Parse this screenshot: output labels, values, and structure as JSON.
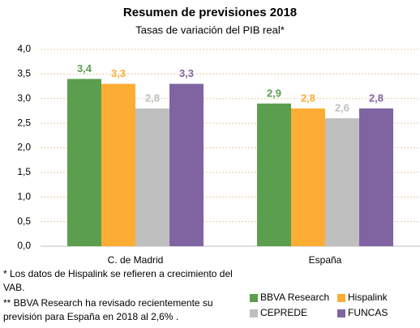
{
  "chart_data": {
    "type": "bar",
    "title": "Resumen de previsiones 2018",
    "subtitle": "Tasas de variación del PIB real*",
    "categories": [
      "C. de Madrid",
      "España"
    ],
    "series": [
      {
        "name": "BBVA Research",
        "color": "#5b9e4d",
        "values": [
          3.4,
          2.9
        ],
        "value_labels": [
          "3,4",
          "2,9"
        ]
      },
      {
        "name": "Hispalink",
        "color": "#fdad34",
        "values": [
          3.3,
          2.8
        ],
        "value_labels": [
          "3,3",
          "2,8"
        ]
      },
      {
        "name": "CEPREDE",
        "color": "#bfbfbf",
        "values": [
          2.8,
          2.6
        ],
        "value_labels": [
          "2,8",
          "2,6"
        ]
      },
      {
        "name": "FUNCAS",
        "color": "#8064a2",
        "values": [
          3.3,
          2.8
        ],
        "value_labels": [
          "3,3",
          "2,8"
        ]
      }
    ],
    "ylim": [
      0,
      4
    ],
    "yticks": [
      {
        "value": 0,
        "label": "0,0"
      },
      {
        "value": 0.5,
        "label": "0,5"
      },
      {
        "value": 1,
        "label": "1,0"
      },
      {
        "value": 1.5,
        "label": "1,5"
      },
      {
        "value": 2,
        "label": "2,0"
      },
      {
        "value": 2.5,
        "label": "2,5"
      },
      {
        "value": 3,
        "label": "3,0"
      },
      {
        "value": 3.5,
        "label": "3,5"
      },
      {
        "value": 4,
        "label": "4,0"
      }
    ],
    "grid": true,
    "notes": [
      "* Los datos de Hispalink se refieren a crecimiento del VAB.",
      "** BBVA Research ha revisado recientemente su previsión para España en 2018 al 2,6% ."
    ]
  }
}
